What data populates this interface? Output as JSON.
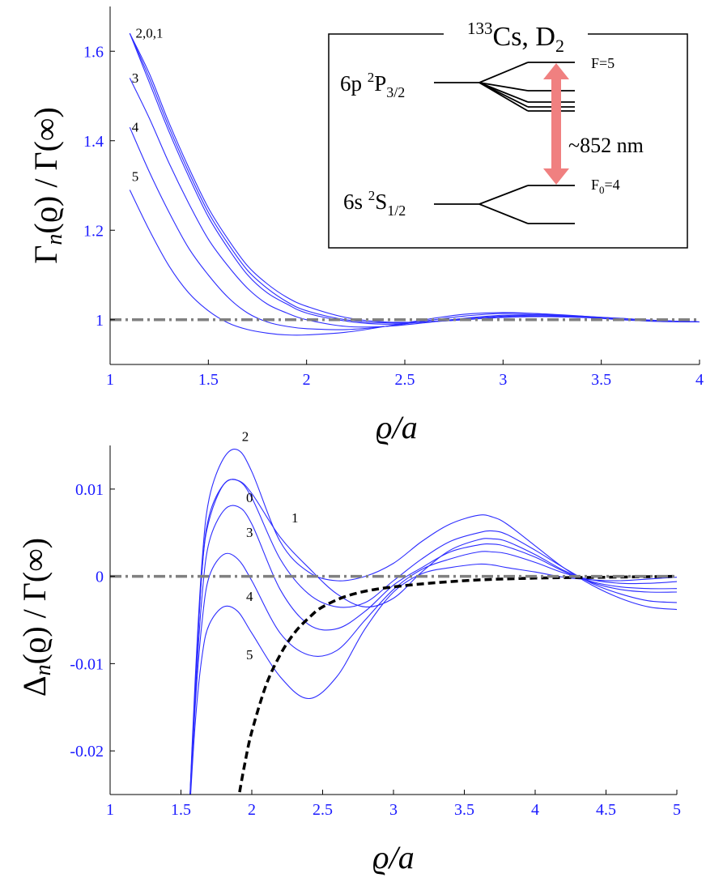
{
  "chart_data": [
    {
      "type": "line",
      "ylabel_main": "Γ",
      "ylabel_sub": "n",
      "ylabel_rest": "(ϱ) / Γ(∞)",
      "xlabel_var": "ϱ",
      "xlabel_rest": "/a",
      "xlim": [
        1,
        4
      ],
      "ylim": [
        0.9,
        1.7
      ],
      "xticks": [
        1,
        1.5,
        2,
        2.5,
        3,
        3.5,
        4
      ],
      "xtick_labels": [
        "1",
        "1.5",
        "2",
        "2.5",
        "3",
        "3.5",
        "4"
      ],
      "yticks": [
        1,
        1.2,
        1.4,
        1.6
      ],
      "ytick_labels": [
        "1",
        "1.2",
        "1.4",
        "1.6"
      ],
      "reference_line": 1,
      "x": [
        1.1,
        1.2,
        1.3,
        1.4,
        1.5,
        1.6,
        1.7,
        1.8,
        1.9,
        2.0,
        2.2,
        2.4,
        2.6,
        2.8,
        3.0,
        3.2,
        3.4,
        3.6,
        3.8,
        4.0
      ],
      "series": [
        {
          "name": "2",
          "values": [
            1.64,
            1.55,
            1.44,
            1.34,
            1.25,
            1.18,
            1.12,
            1.08,
            1.05,
            1.03,
            1.005,
            0.995,
            0.995,
            1.0,
            1.005,
            1.007,
            1.005,
            1.002,
            0.998,
            0.995
          ]
        },
        {
          "name": "0",
          "values": [
            1.64,
            1.54,
            1.43,
            1.33,
            1.24,
            1.17,
            1.11,
            1.07,
            1.04,
            1.02,
            1.0,
            0.993,
            0.995,
            1.0,
            1.006,
            1.008,
            1.006,
            1.002,
            0.998,
            0.995
          ]
        },
        {
          "name": "1",
          "values": [
            1.64,
            1.53,
            1.42,
            1.32,
            1.23,
            1.16,
            1.1,
            1.06,
            1.035,
            1.015,
            0.997,
            0.99,
            0.995,
            1.002,
            1.008,
            1.01,
            1.007,
            1.003,
            0.998,
            0.995
          ]
        },
        {
          "name": "3",
          "values": [
            1.54,
            1.45,
            1.35,
            1.26,
            1.18,
            1.12,
            1.07,
            1.035,
            1.015,
            1.0,
            0.985,
            0.985,
            0.993,
            1.003,
            1.01,
            1.011,
            1.008,
            1.003,
            0.998,
            0.995
          ]
        },
        {
          "name": "4",
          "values": [
            1.43,
            1.33,
            1.24,
            1.16,
            1.1,
            1.05,
            1.015,
            0.995,
            0.985,
            0.98,
            0.978,
            0.985,
            0.997,
            1.008,
            1.014,
            1.013,
            1.008,
            1.002,
            0.997,
            0.995
          ]
        },
        {
          "name": "5",
          "values": [
            1.29,
            1.2,
            1.12,
            1.06,
            1.02,
            0.993,
            0.978,
            0.97,
            0.966,
            0.966,
            0.972,
            0.985,
            1.0,
            1.012,
            1.016,
            1.013,
            1.006,
            1.0,
            0.996,
            0.995
          ]
        }
      ],
      "curve_labels": [
        {
          "text": "2,0,1",
          "x": 1.13,
          "y": 1.63
        },
        {
          "text": "3",
          "x": 1.11,
          "y": 1.53
        },
        {
          "text": "4",
          "x": 1.11,
          "y": 1.42
        },
        {
          "text": "5",
          "x": 1.11,
          "y": 1.31
        }
      ]
    },
    {
      "type": "line",
      "ylabel_main": "Δ",
      "ylabel_sub": "n",
      "ylabel_rest": "(ϱ) / Γ(∞)",
      "xlabel_var": "ϱ",
      "xlabel_rest": "/a",
      "xlim": [
        1,
        5
      ],
      "ylim": [
        -0.025,
        0.015
      ],
      "xticks": [
        1,
        1.5,
        2,
        2.5,
        3,
        3.5,
        4,
        4.5,
        5
      ],
      "xtick_labels": [
        "1",
        "1.5",
        "2",
        "2.5",
        "3",
        "3.5",
        "4",
        "4.5",
        "5"
      ],
      "yticks": [
        -0.02,
        -0.01,
        0,
        0.01
      ],
      "ytick_labels": [
        "-0.02",
        "-0.01",
        "0",
        "0.01"
      ],
      "reference_line": 0,
      "x": [
        1.55,
        1.6,
        1.65,
        1.7,
        1.8,
        1.9,
        2.0,
        2.2,
        2.4,
        2.6,
        2.8,
        3.0,
        3.2,
        3.4,
        3.6,
        3.7,
        3.8,
        4.0,
        4.2,
        4.4,
        4.6,
        4.8,
        5.0
      ],
      "series": [
        {
          "name": "2",
          "values": [
            -0.03,
            -0.012,
            0.002,
            0.009,
            0.0135,
            0.0145,
            0.012,
            0.004,
            0.0005,
            -0.0005,
            0.0,
            0.0015,
            0.004,
            0.006,
            0.007,
            0.0068,
            0.006,
            0.0035,
            0.001,
            -0.001,
            -0.0025,
            -0.0035,
            -0.0038
          ]
        },
        {
          "name": "0",
          "values": [
            -0.03,
            -0.013,
            0.001,
            0.007,
            0.0105,
            0.011,
            0.009,
            0.002,
            -0.002,
            -0.0035,
            -0.003,
            -0.0005,
            0.002,
            0.004,
            0.005,
            0.0052,
            0.0048,
            0.003,
            0.001,
            -0.0008,
            -0.002,
            -0.0028,
            -0.003
          ]
        },
        {
          "name": "1",
          "values": [
            -0.03,
            -0.013,
            0.001,
            0.0065,
            0.0105,
            0.011,
            0.0095,
            0.0045,
            0.001,
            -0.002,
            -0.0035,
            -0.0025,
            0.0005,
            0.003,
            0.0042,
            0.0043,
            0.004,
            0.0025,
            0.0007,
            -0.0007,
            -0.0015,
            -0.0018,
            -0.0018
          ]
        },
        {
          "name": "3",
          "values": [
            -0.03,
            -0.014,
            -0.002,
            0.004,
            0.0075,
            0.008,
            0.006,
            -0.0015,
            -0.0055,
            -0.006,
            -0.004,
            -0.001,
            0.001,
            0.0028,
            0.0036,
            0.0037,
            0.0034,
            0.0022,
            0.0006,
            -0.0006,
            -0.0012,
            -0.0014,
            -0.0014
          ]
        },
        {
          "name": "4",
          "values": [
            -0.03,
            -0.015,
            -0.005,
            0.0,
            0.0025,
            0.002,
            -0.0005,
            -0.0065,
            -0.009,
            -0.0085,
            -0.005,
            -0.0015,
            0.0008,
            0.002,
            0.0028,
            0.0028,
            0.0026,
            0.0016,
            0.0004,
            -0.0004,
            -0.0008,
            -0.0008,
            -0.0006
          ]
        },
        {
          "name": "5",
          "values": [
            -0.03,
            -0.017,
            -0.009,
            -0.0055,
            -0.0035,
            -0.004,
            -0.0065,
            -0.0115,
            -0.014,
            -0.0115,
            -0.006,
            -0.0018,
            0.0003,
            0.001,
            0.0014,
            0.0013,
            0.001,
            0.0005,
            -0.0001,
            -0.0004,
            -0.0005,
            -0.0003,
            -0.0001
          ]
        }
      ],
      "bound_curve": {
        "x": [
          1.9,
          1.95,
          2.0,
          2.1,
          2.2,
          2.3,
          2.4,
          2.5,
          2.7,
          3.0,
          3.5,
          4.0,
          4.5,
          5.0
        ],
        "values": [
          -0.026,
          -0.0215,
          -0.0178,
          -0.0125,
          -0.009,
          -0.0065,
          -0.0048,
          -0.0035,
          -0.0021,
          -0.0012,
          -0.0005,
          -0.0002,
          -0.0001,
          0.0
        ]
      },
      "curve_labels": [
        {
          "text": "2",
          "x": 1.93,
          "y": 0.0155
        },
        {
          "text": "0",
          "x": 1.96,
          "y": 0.0085
        },
        {
          "text": "1",
          "x": 2.28,
          "y": 0.0062
        },
        {
          "text": "3",
          "x": 1.96,
          "y": 0.0045
        },
        {
          "text": "4",
          "x": 1.96,
          "y": -0.0028
        },
        {
          "text": "5",
          "x": 1.96,
          "y": -0.0095
        }
      ]
    }
  ],
  "inset": {
    "title_sup": "133",
    "title_main": "Cs, D",
    "title_sub": "2",
    "upper_prefix": "6p ",
    "upper_sup": "2",
    "upper_main": "P",
    "upper_sub": "3/2",
    "lower_prefix": "6s ",
    "lower_sup": "2",
    "lower_main": "S",
    "lower_sub": "1/2",
    "f_upper": "F=5",
    "f_lower_main": "F",
    "f_lower_sub": "0",
    "f_lower_rest": "=4",
    "wavelength": "~852 nm",
    "arrow_color": "#f08080"
  }
}
